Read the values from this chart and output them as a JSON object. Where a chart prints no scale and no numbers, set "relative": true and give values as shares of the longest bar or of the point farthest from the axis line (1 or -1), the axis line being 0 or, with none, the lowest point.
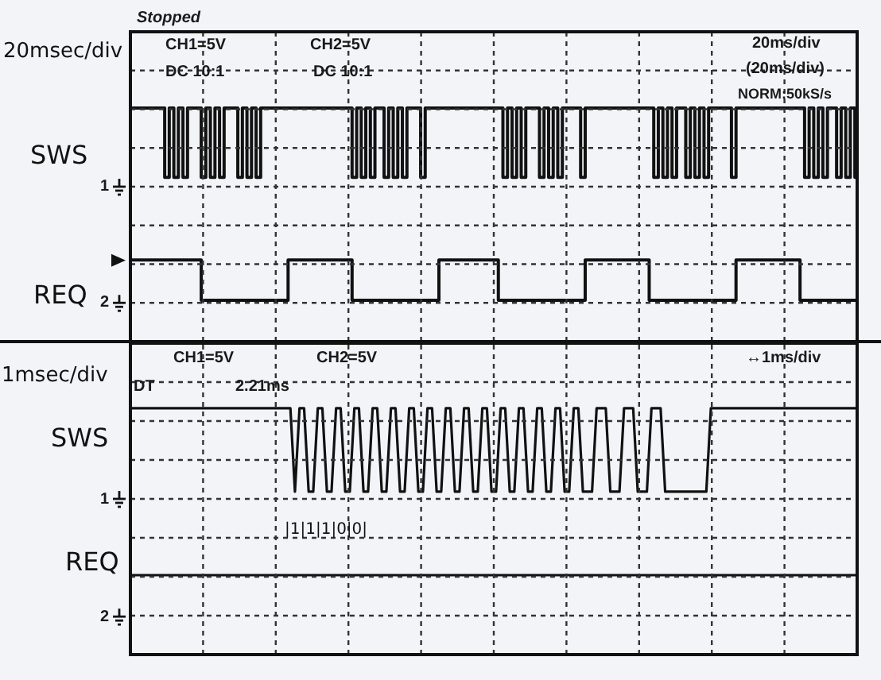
{
  "chart_data": [
    {
      "type": "step",
      "relative": true,
      "grid": true,
      "categories": [
        null,
        null,
        null,
        null,
        null,
        null,
        null,
        null,
        null,
        null,
        null,
        null,
        null,
        null,
        null,
        null,
        null,
        null,
        null,
        null,
        null,
        null,
        null,
        null,
        null,
        null,
        null,
        null,
        null,
        null,
        null,
        null,
        null,
        null,
        null,
        null,
        null,
        null,
        null,
        null,
        null,
        null,
        null,
        null,
        null,
        null,
        null,
        null,
        null,
        null,
        null,
        null,
        null,
        null,
        null,
        null,
        null,
        null,
        null,
        null,
        null,
        null,
        null,
        null,
        null,
        null,
        null,
        null,
        null,
        null,
        null,
        null,
        null,
        null,
        null,
        null,
        null,
        null,
        null,
        null,
        null,
        null,
        null,
        null,
        null,
        null,
        null,
        null,
        null,
        null,
        null,
        null,
        null,
        null,
        null,
        null,
        null,
        null,
        null,
        null,
        null,
        null,
        null,
        null,
        null,
        null,
        null,
        null,
        null,
        null,
        null,
        null,
        null,
        null,
        null,
        null,
        null,
        null,
        null,
        null,
        null,
        null,
        null,
        null,
        null,
        null,
        null,
        null,
        null,
        null,
        null,
        null,
        null,
        null,
        null,
        null,
        null,
        null,
        null,
        null,
        null,
        null,
        null,
        null,
        null,
        null,
        null,
        null,
        null,
        null,
        null,
        null,
        null,
        null,
        null,
        null,
        null,
        null,
        null,
        null
      ],
      "series": [
        {
          "name": "SWS",
          "color": "#111111",
          "values": [
            1,
            1,
            1,
            1,
            1,
            1,
            1,
            1,
            0.64,
            1,
            0.64,
            1,
            0.64,
            1,
            1,
            1,
            0.64,
            1,
            0.64,
            1,
            0.64,
            1,
            1,
            1,
            0.64,
            1,
            0.64,
            1,
            0.64,
            1,
            1,
            1,
            1,
            1,
            1,
            1,
            1,
            1,
            1,
            1,
            1,
            1,
            1,
            1,
            1,
            1,
            1,
            1,
            1,
            0.64,
            1,
            0.64,
            1,
            0.64,
            1,
            1,
            0.64,
            1,
            0.64,
            1,
            0.64,
            1,
            1,
            1,
            0.64,
            1,
            1,
            1,
            1,
            1,
            1,
            1,
            1,
            1,
            1,
            1,
            1,
            1,
            1,
            1,
            1,
            1,
            0.64,
            1,
            0.64,
            1,
            0.64,
            1,
            1,
            1,
            0.64,
            1,
            0.64,
            1,
            0.64,
            1,
            1,
            1,
            1,
            0.64,
            1,
            1,
            1,
            1,
            1,
            1,
            1,
            1,
            1,
            1,
            1,
            1,
            1,
            1,
            1,
            0.64,
            1,
            0.64,
            1,
            0.64,
            1,
            1,
            0.64,
            1,
            0.64,
            1,
            0.64,
            1,
            1,
            1,
            1,
            1,
            0.64,
            1,
            1,
            1,
            1,
            1,
            1,
            1,
            1,
            1,
            1,
            1,
            1,
            1,
            1,
            1,
            0.64,
            1,
            0.64,
            1,
            0.64,
            1,
            1,
            0.64,
            1,
            0.64,
            1,
            0.64
          ]
        },
        {
          "name": "REQ",
          "color": "#111111",
          "values": [
            0.21,
            0.21,
            0.21,
            0.21,
            0.21,
            0.21,
            0.21,
            0.21,
            0.21,
            0.21,
            0.21,
            0.21,
            0.21,
            0.21,
            0.21,
            0.21,
            0,
            0,
            0,
            0,
            0,
            0,
            0,
            0,
            0,
            0,
            0,
            0,
            0,
            0,
            0,
            0,
            0,
            0,
            0,
            0.21,
            0.21,
            0.21,
            0.21,
            0.21,
            0.21,
            0.21,
            0.21,
            0.21,
            0.21,
            0.21,
            0.21,
            0.21,
            0.21,
            0,
            0,
            0,
            0,
            0,
            0,
            0,
            0,
            0,
            0,
            0,
            0,
            0,
            0,
            0,
            0,
            0,
            0,
            0,
            0.21,
            0.21,
            0.21,
            0.21,
            0.21,
            0.21,
            0.21,
            0.21,
            0.21,
            0.21,
            0.21,
            0.21,
            0.21,
            0,
            0,
            0,
            0,
            0,
            0,
            0,
            0,
            0,
            0,
            0,
            0,
            0,
            0,
            0,
            0,
            0,
            0,
            0,
            0.21,
            0.21,
            0.21,
            0.21,
            0.21,
            0.21,
            0.21,
            0.21,
            0.21,
            0.21,
            0.21,
            0.21,
            0.21,
            0.21,
            0,
            0,
            0,
            0,
            0,
            0,
            0,
            0,
            0,
            0,
            0,
            0,
            0,
            0,
            0,
            0,
            0,
            0,
            0,
            0.21,
            0.21,
            0.21,
            0.21,
            0.21,
            0.21,
            0.21,
            0.21,
            0.21,
            0.21,
            0.21,
            0.21,
            0.21,
            0.21,
            0,
            0,
            0,
            0,
            0,
            0,
            0,
            0,
            0,
            0,
            0,
            0,
            0
          ]
        }
      ],
      "annotations": [
        "20msec/div",
        "Stopped",
        "CH1=5V",
        "DC 10:1",
        "CH2=5V",
        "DC 10:1",
        "20ms/div",
        "(20ms/div)",
        "NORM:50kS/s",
        "1",
        "2"
      ]
    },
    {
      "type": "line",
      "relative": true,
      "grid": true,
      "categories": [
        null,
        null,
        null,
        null,
        null,
        null,
        null,
        null,
        null,
        null,
        null,
        null,
        null,
        null,
        null,
        null,
        null,
        null,
        null,
        null,
        null,
        null,
        null,
        null,
        null,
        null,
        null,
        null,
        null,
        null,
        null,
        null,
        null,
        null,
        null,
        null,
        null,
        null,
        null,
        null,
        null,
        null,
        null,
        null,
        null,
        null,
        null,
        null,
        null,
        null,
        null,
        null,
        null,
        null,
        null,
        null,
        null,
        null,
        null,
        null,
        null,
        null,
        null,
        null,
        null,
        null,
        null,
        null,
        null,
        null,
        null,
        null,
        null,
        null,
        null,
        null,
        null,
        null,
        null,
        null,
        null,
        null,
        null,
        null,
        null,
        null,
        null,
        null,
        null,
        null,
        null,
        null,
        null,
        null,
        null,
        null,
        null,
        null,
        null,
        null,
        null,
        null,
        null,
        null,
        null,
        null,
        null,
        null,
        null,
        null,
        null,
        null,
        null,
        null,
        null,
        null,
        null,
        null,
        null,
        null,
        null,
        null,
        null,
        null,
        null,
        null,
        null,
        null,
        null,
        null,
        null,
        null,
        null,
        null,
        null,
        null,
        null,
        null,
        null,
        null,
        null,
        null,
        null,
        null,
        null,
        null,
        null,
        null,
        null,
        null,
        null,
        null,
        null,
        null,
        null,
        null,
        null,
        null,
        null,
        null
      ],
      "series": [
        {
          "name": "SWS",
          "color": "#111111",
          "values": [
            1,
            1,
            1,
            1,
            1,
            1,
            1,
            1,
            1,
            1,
            1,
            1,
            1,
            1,
            1,
            1,
            1,
            1,
            1,
            1,
            1,
            1,
            1,
            1,
            1,
            1,
            1,
            1,
            1,
            1,
            1,
            1,
            1,
            1,
            1,
            1,
            0.5,
            1,
            1,
            0.5,
            0.5,
            1,
            1,
            0.5,
            0.5,
            1,
            1,
            0.5,
            0.5,
            1,
            1,
            0.5,
            0.5,
            1,
            1,
            0.5,
            0.5,
            1,
            1,
            0.5,
            0.5,
            1,
            1,
            0.5,
            0.5,
            1,
            1,
            0.5,
            0.5,
            1,
            1,
            0.5,
            0.5,
            1,
            1,
            0.5,
            0.5,
            1,
            1,
            0.5,
            0.5,
            1,
            1,
            0.5,
            0.5,
            1,
            1,
            0.5,
            0.5,
            1,
            1,
            0.5,
            0.5,
            1,
            1,
            0.5,
            0.5,
            1,
            1,
            0.5,
            0.5,
            0.5,
            1,
            1,
            1,
            0.5,
            0.5,
            0.5,
            1,
            1,
            1,
            0.5,
            0.5,
            0.5,
            1,
            1,
            1,
            0.5,
            0.5,
            0.5,
            0.5,
            0.5,
            0.5,
            0.5,
            0.5,
            0.5,
            0.5,
            1,
            1,
            1,
            1,
            1,
            1,
            1,
            1,
            1,
            1,
            1,
            1,
            1,
            1,
            1,
            1,
            1,
            1,
            1,
            1,
            1,
            1,
            1,
            1,
            1,
            1,
            1,
            1,
            1,
            1,
            1,
            1,
            1
          ]
        },
        {
          "name": "REQ",
          "color": "#111111",
          "values": [
            0,
            0,
            0,
            0,
            0,
            0,
            0,
            0,
            0,
            0,
            0,
            0,
            0,
            0,
            0,
            0,
            0,
            0,
            0,
            0,
            0,
            0,
            0,
            0,
            0,
            0,
            0,
            0,
            0,
            0,
            0,
            0,
            0,
            0,
            0,
            0,
            0,
            0,
            0,
            0,
            0,
            0,
            0,
            0,
            0,
            0,
            0,
            0,
            0,
            0,
            0,
            0,
            0,
            0,
            0,
            0,
            0,
            0,
            0,
            0,
            0,
            0,
            0,
            0,
            0,
            0,
            0,
            0,
            0,
            0,
            0,
            0,
            0,
            0,
            0,
            0,
            0,
            0,
            0,
            0,
            0,
            0,
            0,
            0,
            0,
            0,
            0,
            0,
            0,
            0,
            0,
            0,
            0,
            0,
            0,
            0,
            0,
            0,
            0,
            0,
            0,
            0,
            0,
            0,
            0,
            0,
            0,
            0,
            0,
            0,
            0,
            0,
            0,
            0,
            0,
            0,
            0,
            0,
            0,
            0,
            0,
            0,
            0,
            0,
            0,
            0,
            0,
            0,
            0,
            0,
            0,
            0,
            0,
            0,
            0,
            0,
            0,
            0,
            0,
            0,
            0,
            0,
            0,
            0,
            0,
            0,
            0,
            0,
            0,
            0,
            0,
            0,
            0,
            0,
            0,
            0,
            0,
            0,
            0,
            0
          ]
        }
      ],
      "annotations": [
        "1msec/div",
        "CH1=5V",
        "CH2=5V",
        "DT",
        "2.21ms",
        "↔1ms/div",
        "|1|1|1|0|0|",
        "1",
        "2"
      ]
    }
  ]
}
